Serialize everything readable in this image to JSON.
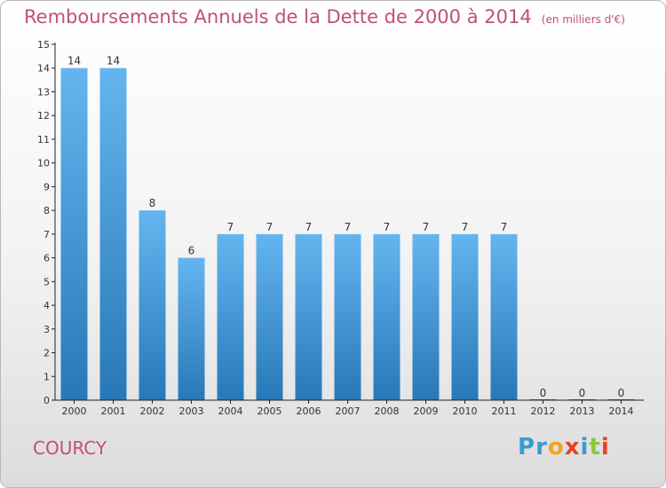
{
  "header": {
    "title": "Remboursements Annuels de la Dette de 2000 à 2014",
    "unit": "(en milliers d'€)"
  },
  "footer": {
    "commune": "COURCY",
    "logo_text": "Proxiti",
    "logo_colors": [
      "#3d9ad1",
      "#3d9ad1",
      "#f4a21d",
      "#e8412b",
      "#3d9ad1",
      "#8cc63f",
      "#e8412b"
    ]
  },
  "colors": {
    "title": "#c0507a",
    "bar_light": "#64b5ef",
    "bar_dark": "#2878b8",
    "axis": "#222222"
  },
  "chart_data": {
    "type": "bar",
    "title": "Remboursements Annuels de la Dette de 2000 à 2014",
    "categories": [
      "2000",
      "2001",
      "2002",
      "2003",
      "2004",
      "2005",
      "2006",
      "2007",
      "2008",
      "2009",
      "2010",
      "2011",
      "2012",
      "2013",
      "2014"
    ],
    "values": [
      14,
      14,
      8,
      6,
      7,
      7,
      7,
      7,
      7,
      7,
      7,
      7,
      0,
      0,
      0
    ],
    "data_labels": [
      "14",
      "14",
      "8",
      "6",
      "7",
      "7",
      "7",
      "7",
      "7",
      "7",
      "7",
      "7",
      "0",
      "0",
      "0"
    ],
    "yticks": [
      "0",
      "1",
      "2",
      "3",
      "4",
      "5",
      "6",
      "7",
      "8",
      "9",
      "10",
      "11",
      "12",
      "13",
      "14",
      "15"
    ],
    "ylim": [
      0,
      15
    ],
    "xlabel": "",
    "ylabel": "",
    "grid": false
  }
}
